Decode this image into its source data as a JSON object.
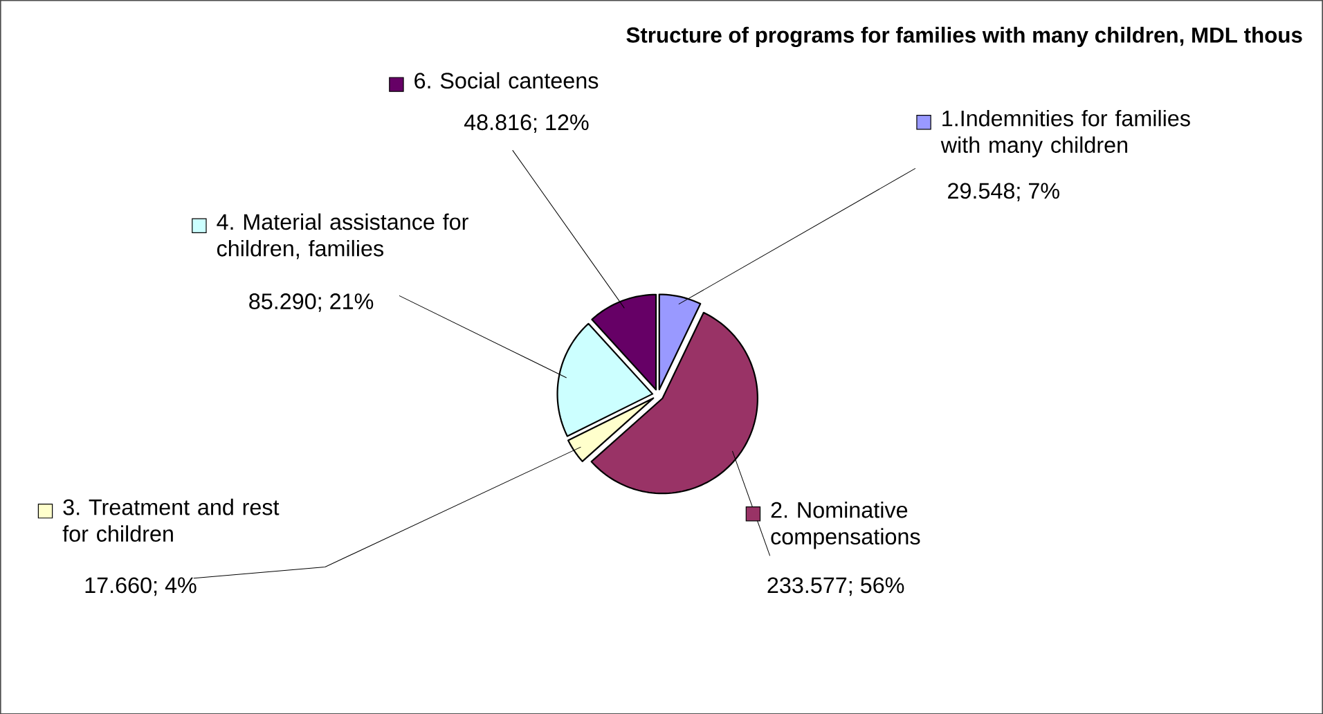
{
  "chart_data": {
    "type": "pie",
    "title": "Structure of programs for families with many children, MDL thous",
    "categories": [
      "1.Indemnities for families with many children",
      "2. Nominative compensations",
      "3. Treatment and rest for children",
      "4. Material assistance for children, families",
      "6. Social canteens"
    ],
    "values": [
      29.548,
      233.577,
      17.66,
      85.29,
      48.816
    ],
    "value_labels": [
      "29.548; 7%",
      "233.577; 56%",
      "17.660; 4%",
      "85.290; 21%",
      "48.816; 12%"
    ],
    "colors": [
      "#9999ff",
      "#993366",
      "#ffffcc",
      "#ccffff",
      "#660066"
    ],
    "legend": "top left"
  }
}
